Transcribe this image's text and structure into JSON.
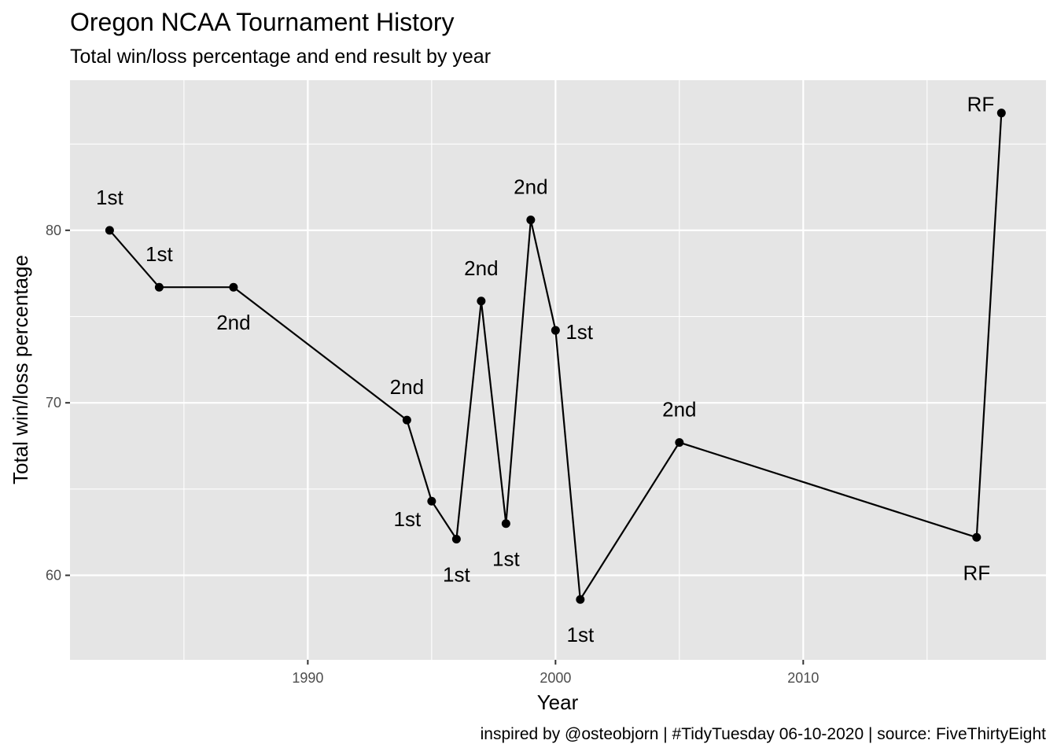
{
  "title": "Oregon NCAA Tournament History",
  "subtitle": "Total win/loss percentage and end result by year",
  "caption": "inspired by @osteobjorn | #TidyTuesday 06-10-2020 | source: FiveThirtyEight",
  "colors": {
    "panel_background": "#e5e5e5",
    "grid": "#ffffff",
    "line": "#000000",
    "point": "#000000"
  },
  "chart_data": {
    "type": "line",
    "title": "Oregon NCAA Tournament History",
    "subtitle": "Total win/loss percentage and end result by year",
    "xlabel": "Year",
    "ylabel": "Total win/loss percentage",
    "xlim": [
      1980.4,
      2019.8
    ],
    "ylim": [
      55.1,
      88.7
    ],
    "x_ticks": [
      1990,
      2000,
      2010
    ],
    "x_minor_ticks": [
      1985,
      1995,
      2005,
      2015
    ],
    "y_ticks": [
      60,
      70,
      80
    ],
    "y_minor_ticks": [
      65,
      75,
      85
    ],
    "grid": true,
    "legend": "none",
    "series": [
      {
        "points": [
          {
            "x": 1982,
            "y": 80.0,
            "label": "1st",
            "label_pos": "above"
          },
          {
            "x": 1984,
            "y": 76.7,
            "label": "1st",
            "label_pos": "above"
          },
          {
            "x": 1987,
            "y": 76.7,
            "label": "2nd",
            "label_pos": "below"
          },
          {
            "x": 1994,
            "y": 69.0,
            "label": "2nd",
            "label_pos": "above"
          },
          {
            "x": 1995,
            "y": 64.3,
            "label": "1st",
            "label_pos": "below-left"
          },
          {
            "x": 1996,
            "y": 62.1,
            "label": "1st",
            "label_pos": "below"
          },
          {
            "x": 1997,
            "y": 75.9,
            "label": "2nd",
            "label_pos": "above"
          },
          {
            "x": 1998,
            "y": 63.0,
            "label": "1st",
            "label_pos": "below"
          },
          {
            "x": 1999,
            "y": 80.6,
            "label": "2nd",
            "label_pos": "above"
          },
          {
            "x": 2000,
            "y": 74.2,
            "label": "1st",
            "label_pos": "right"
          },
          {
            "x": 2001,
            "y": 58.6,
            "label": "1st",
            "label_pos": "below"
          },
          {
            "x": 2005,
            "y": 67.7,
            "label": "2nd",
            "label_pos": "above"
          },
          {
            "x": 2017,
            "y": 62.2,
            "label": "RF",
            "label_pos": "below"
          },
          {
            "x": 2018,
            "y": 86.8,
            "label": "RF",
            "label_pos": "left"
          }
        ]
      }
    ]
  }
}
